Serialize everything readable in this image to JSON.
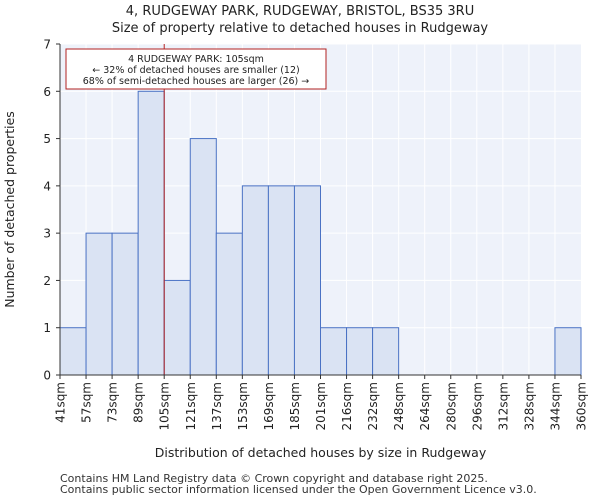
{
  "chart_data": {
    "type": "bar",
    "title": "4, RUDGEWAY PARK, RUDGEWAY, BRISTOL, BS35 3RU",
    "subtitle": "Size of property relative to detached houses in Rudgeway",
    "xlabel": "Distribution of detached houses by size in Rudgeway",
    "ylabel": "Number of detached properties",
    "x_tick_labels": [
      "41sqm",
      "57sqm",
      "73sqm",
      "89sqm",
      "105sqm",
      "121sqm",
      "137sqm",
      "153sqm",
      "169sqm",
      "185sqm",
      "201sqm",
      "216sqm",
      "232sqm",
      "248sqm",
      "264sqm",
      "280sqm",
      "296sqm",
      "312sqm",
      "328sqm",
      "344sqm",
      "360sqm"
    ],
    "bin_edges": [
      41,
      57,
      73,
      89,
      105,
      121,
      137,
      153,
      169,
      185,
      201,
      216,
      232,
      248,
      264,
      280,
      296,
      312,
      328,
      344,
      360
    ],
    "values": [
      1,
      3,
      3,
      6,
      2,
      5,
      3,
      4,
      4,
      4,
      1,
      1,
      1,
      0,
      0,
      0,
      0,
      0,
      0,
      1
    ],
    "ylim": [
      0,
      7
    ],
    "y_ticks": [
      0,
      1,
      2,
      3,
      4,
      5,
      6,
      7
    ],
    "grid": true,
    "marker": {
      "value": 105,
      "color": "#b22222",
      "annotation": [
        "4 RUDGEWAY PARK: 105sqm",
        "← 32% of detached houses are smaller (12)",
        "68% of semi-detached houses are larger (26) →"
      ]
    },
    "colors": {
      "bar_fill": "#dae3f3",
      "bar_stroke": "#4a72c4",
      "plot_bg": "#eef2fa",
      "grid": "#ffffff",
      "annotation_border": "#b22222"
    }
  },
  "footer": {
    "line1": "Contains HM Land Registry data © Crown copyright and database right 2025.",
    "line2": "Contains public sector information licensed under the Open Government Licence v3.0."
  }
}
